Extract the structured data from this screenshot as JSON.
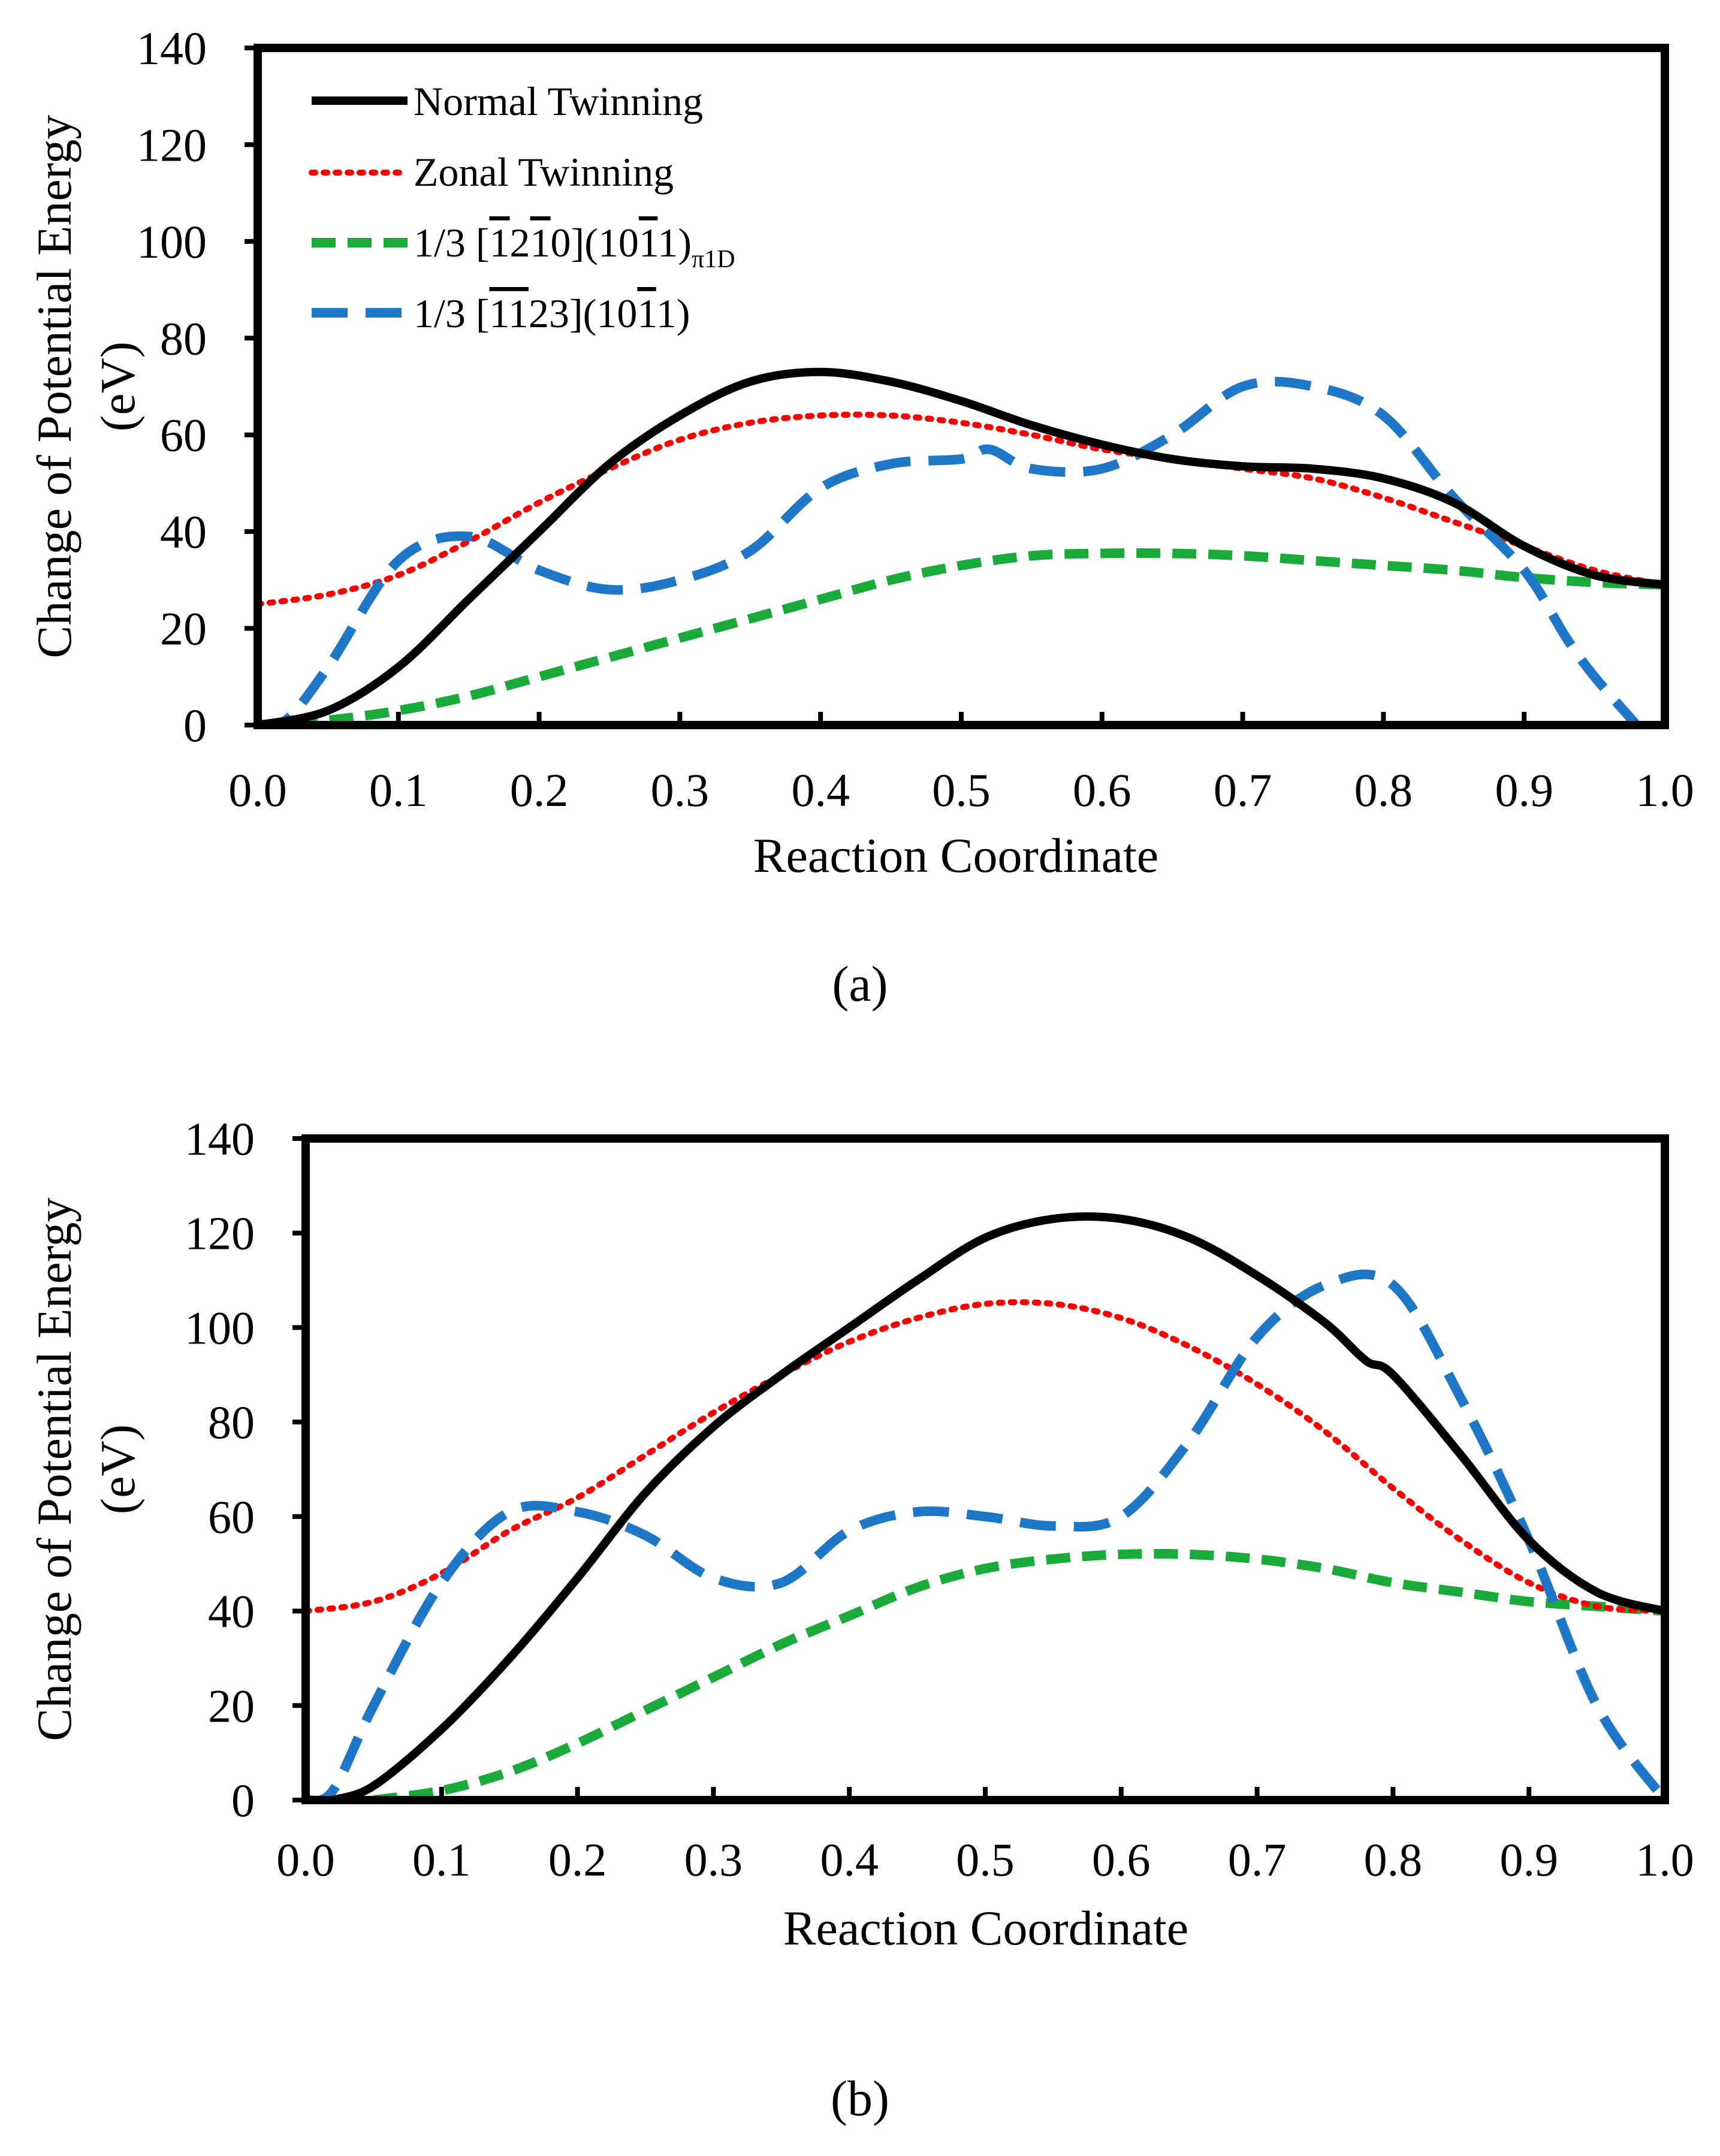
{
  "chart_data": [
    {
      "type": "line",
      "panel_label": "(a)",
      "xlabel": "Reaction Coordinate",
      "ylabel_line1": "Change of Potential Energy",
      "ylabel_line2": "(eV)",
      "xlim": [
        0,
        1
      ],
      "ylim": [
        0,
        140
      ],
      "xticks": [
        "0.0",
        "0.1",
        "0.2",
        "0.3",
        "0.4",
        "0.5",
        "0.6",
        "0.7",
        "0.8",
        "0.9",
        "1.0"
      ],
      "yticks": [
        "0",
        "20",
        "40",
        "60",
        "80",
        "100",
        "120",
        "140"
      ],
      "grid": false,
      "legend_position": "top-left",
      "series": [
        {
          "name": "Normal Twinning",
          "label": "Normal Twinning",
          "style": "solid",
          "color": "#000000",
          "x": [
            0,
            0.05,
            0.1,
            0.15,
            0.2,
            0.25,
            0.3,
            0.35,
            0.4,
            0.45,
            0.5,
            0.55,
            0.6,
            0.65,
            0.7,
            0.75,
            0.8,
            0.85,
            0.9,
            0.95,
            1.0
          ],
          "y": [
            0,
            3,
            12,
            26,
            40,
            54,
            64,
            71,
            73,
            71,
            67,
            62,
            58,
            55,
            53.5,
            53,
            51,
            46,
            37,
            31,
            29
          ]
        },
        {
          "name": "Zonal Twinning",
          "label": "Zonal Twinning",
          "style": "dotted",
          "color": "#ff0000",
          "x": [
            0,
            0.05,
            0.1,
            0.15,
            0.2,
            0.25,
            0.3,
            0.35,
            0.4,
            0.45,
            0.5,
            0.55,
            0.6,
            0.65,
            0.7,
            0.75,
            0.8,
            0.85,
            0.9,
            0.95,
            1.0
          ],
          "y": [
            25,
            27,
            31,
            38,
            46,
            53,
            59,
            62.5,
            64,
            64,
            62.5,
            60,
            57,
            55,
            53,
            51,
            47,
            42,
            37,
            32,
            29
          ]
        },
        {
          "name": "1/3 [-12-10](10-11) pi1D",
          "label": "1/3 [",
          "label_part2": "1",
          "label_part3": "2",
          "label_part4": "1",
          "label_part5": "0](10",
          "label_part6": "1",
          "label_part7": "1)",
          "label_sub": "π1D",
          "style": "dashed-short",
          "color": "#1aaa3a",
          "x": [
            0,
            0.05,
            0.1,
            0.15,
            0.2,
            0.25,
            0.3,
            0.35,
            0.4,
            0.45,
            0.5,
            0.55,
            0.6,
            0.65,
            0.7,
            0.75,
            0.8,
            0.85,
            0.9,
            0.95,
            1.0
          ],
          "y": [
            0,
            1,
            3,
            6,
            10,
            14,
            18,
            22,
            26,
            30,
            33,
            35,
            35.5,
            35.5,
            35,
            34,
            33,
            32,
            30.5,
            29.5,
            29
          ]
        },
        {
          "name": "1/3 [-1-123](10-11)",
          "label": "1/3 [",
          "label_part2": "1",
          "label_part3": "1",
          "label_part4": "23](10",
          "label_part5": "1",
          "label_part6": "1)",
          "style": "dashed-long",
          "color": "#1f77c8",
          "x": [
            0,
            0.02,
            0.05,
            0.1,
            0.15,
            0.2,
            0.25,
            0.3,
            0.35,
            0.4,
            0.45,
            0.5,
            0.52,
            0.55,
            0.6,
            0.65,
            0.7,
            0.75,
            0.8,
            0.85,
            0.9,
            0.93,
            0.95,
            0.98
          ],
          "y": [
            0,
            1,
            12,
            34,
            39,
            32,
            28,
            30,
            36,
            49,
            54,
            55,
            57,
            53,
            53,
            60,
            70,
            70,
            64,
            47,
            32,
            18,
            10,
            0
          ]
        }
      ]
    },
    {
      "type": "line",
      "panel_label": "(b)",
      "xlabel": "Reaction Coordinate",
      "ylabel_line1": "Change of Potential Energy",
      "ylabel_line2": "(eV)",
      "xlim": [
        0,
        1
      ],
      "ylim": [
        0,
        140
      ],
      "xticks": [
        "0.0",
        "0.1",
        "0.2",
        "0.3",
        "0.4",
        "0.5",
        "0.6",
        "0.7",
        "0.8",
        "0.9",
        "1.0"
      ],
      "yticks": [
        "0",
        "20",
        "40",
        "60",
        "80",
        "100",
        "120",
        "140"
      ],
      "grid": false,
      "series": [
        {
          "name": "Normal Twinning",
          "style": "solid",
          "color": "#000000",
          "x": [
            0.02,
            0.05,
            0.1,
            0.15,
            0.2,
            0.25,
            0.3,
            0.35,
            0.4,
            0.45,
            0.5,
            0.55,
            0.6,
            0.65,
            0.7,
            0.75,
            0.78,
            0.8,
            0.85,
            0.9,
            0.95,
            1.0
          ],
          "y": [
            0,
            3,
            15,
            30,
            47,
            65,
            79,
            90,
            100,
            110,
            119,
            123,
            123,
            119,
            111,
            101,
            93,
            90,
            73,
            55,
            44,
            40
          ]
        },
        {
          "name": "Zonal Twinning",
          "style": "dotted",
          "color": "#ff0000",
          "x": [
            0,
            0.05,
            0.1,
            0.15,
            0.2,
            0.25,
            0.3,
            0.35,
            0.4,
            0.45,
            0.5,
            0.55,
            0.6,
            0.65,
            0.7,
            0.75,
            0.8,
            0.85,
            0.9,
            0.95,
            1.0
          ],
          "y": [
            40,
            42,
            48,
            57,
            64,
            73,
            82,
            90,
            97,
            102,
            105,
            105,
            102,
            96,
            88,
            78,
            66,
            55,
            46,
            41,
            40
          ]
        },
        {
          "name": "1/3 [-12-10](10-11) pi1D",
          "style": "dashed-short",
          "color": "#1aaa3a",
          "x": [
            0.05,
            0.1,
            0.15,
            0.2,
            0.25,
            0.3,
            0.35,
            0.4,
            0.45,
            0.5,
            0.55,
            0.6,
            0.65,
            0.7,
            0.75,
            0.8,
            0.85,
            0.9,
            0.95,
            1.0
          ],
          "y": [
            0,
            2,
            6,
            12,
            19,
            26,
            33,
            39,
            45,
            49,
            51,
            52,
            52,
            51,
            49,
            46,
            44,
            42,
            41,
            40
          ]
        },
        {
          "name": "1/3 [-1-123](10-11)",
          "style": "dashed-long",
          "color": "#1f77c8",
          "x": [
            0,
            0.02,
            0.05,
            0.1,
            0.15,
            0.2,
            0.25,
            0.3,
            0.35,
            0.4,
            0.45,
            0.5,
            0.55,
            0.6,
            0.65,
            0.7,
            0.75,
            0.8,
            0.85,
            0.9,
            0.95,
            1.0
          ],
          "y": [
            0,
            2,
            20,
            46,
            61,
            61,
            56,
            47,
            46,
            57,
            61,
            60,
            58,
            60,
            76,
            98,
            109,
            109,
            85,
            55,
            20,
            0
          ]
        }
      ]
    }
  ]
}
